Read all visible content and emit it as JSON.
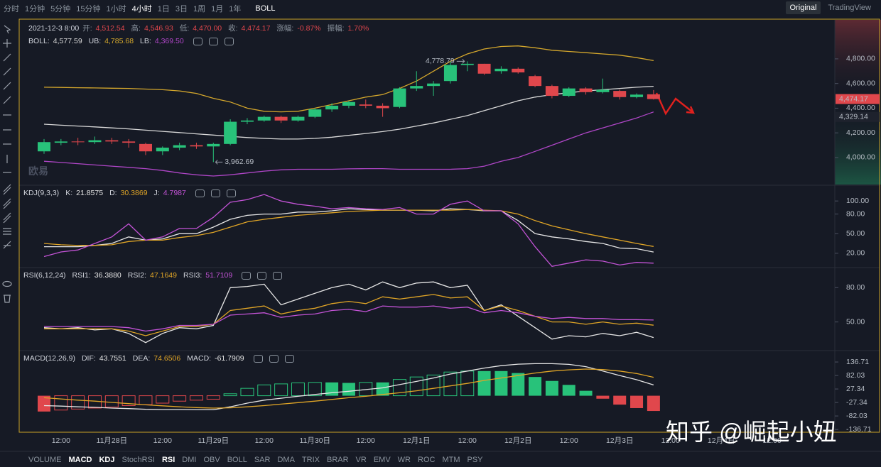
{
  "toolbar": {
    "timeframes": [
      "分时",
      "1分钟",
      "5分钟",
      "15分钟",
      "1小时",
      "4小时",
      "1日",
      "3日",
      "1周",
      "1月",
      "1年"
    ],
    "active_timeframe": 5,
    "indicator": "BOLL",
    "views": [
      "Original",
      "TradingView"
    ],
    "active_view": 0
  },
  "indicator_bar": {
    "items": [
      "VOLUME",
      "MACD",
      "KDJ",
      "StochRSI",
      "RSI",
      "DMI",
      "OBV",
      "BOLL",
      "SAR",
      "DMA",
      "TRIX",
      "BRAR",
      "VR",
      "EMV",
      "WR",
      "ROC",
      "MTM",
      "PSY"
    ],
    "active": [
      1,
      2,
      4
    ]
  },
  "logo": "欧易",
  "watermark": "知乎 @崛起小妞",
  "chart_data": [
    {
      "type": "candlestick",
      "info": {
        "time": "2021-12-3 8:00",
        "value_color": "#e0474c",
        "items": [
          {
            "label": "开:",
            "value": "4,512.54"
          },
          {
            "label": "高:",
            "value": "4,546.93"
          },
          {
            "label": "低:",
            "value": "4,470.00"
          },
          {
            "label": "收:",
            "value": "4,474.17"
          },
          {
            "label": "涨幅:",
            "value": "-0.87%"
          },
          {
            "label": "振幅:",
            "value": "1.70%"
          }
        ]
      },
      "categories": [
        null,
        "12:00",
        null,
        null,
        "11月28日",
        null,
        null,
        "12:00",
        null,
        null,
        "11月29日",
        null,
        null,
        "12:00",
        null,
        null,
        "11月30日",
        null,
        null,
        "12:00",
        null,
        null,
        "12月1日",
        null,
        null,
        "12:00",
        null,
        null,
        "12月2日",
        null,
        null,
        "12:00",
        null,
        null,
        "12月3日",
        null,
        null,
        "12:00",
        null,
        null,
        "12月4日",
        null,
        null,
        "12:00"
      ],
      "open": [
        4050,
        4120,
        4130,
        4125,
        4140,
        4130,
        4110,
        4050,
        4080,
        4100,
        4090,
        4110,
        4290,
        4300,
        4330,
        4300,
        4330,
        4390,
        4420,
        4430,
        4420,
        4410,
        4560,
        4580,
        4620,
        4750,
        4760,
        4700,
        4720,
        4660,
        4580,
        4500,
        4560,
        4530,
        4540,
        4490,
        4512.54,
        null,
        null,
        null,
        null,
        null,
        null,
        null
      ],
      "high": [
        4150,
        4150,
        4160,
        4170,
        4160,
        4150,
        4120,
        4090,
        4120,
        4120,
        4120,
        4310,
        4320,
        4340,
        4340,
        4340,
        4400,
        4440,
        4460,
        4470,
        4440,
        4570,
        4700,
        4620,
        4778.79,
        4780,
        4760,
        4740,
        4730,
        4670,
        4590,
        4570,
        4570,
        4640,
        4550,
        4520,
        4546.93,
        null,
        null,
        null,
        null,
        null,
        null,
        null
      ],
      "low": [
        4030,
        4100,
        4100,
        4110,
        4110,
        4080,
        4020,
        4020,
        4060,
        4070,
        3962.69,
        4100,
        4270,
        4290,
        4280,
        4290,
        4320,
        4370,
        4400,
        4400,
        4330,
        4400,
        4540,
        4500,
        4600,
        4700,
        4670,
        4680,
        4680,
        4570,
        4480,
        4490,
        4510,
        4520,
        4470,
        4480,
        4470,
        null,
        null,
        null,
        null,
        null,
        null,
        null
      ],
      "close": [
        4125,
        4130,
        4125,
        4140,
        4130,
        4120,
        4050,
        4080,
        4100,
        4090,
        4110,
        4290,
        4300,
        4330,
        4300,
        4330,
        4390,
        4420,
        4450,
        4420,
        4400,
        4560,
        4580,
        4600,
        4750,
        4760,
        4680,
        4720,
        4690,
        4580,
        4500,
        4560,
        4530,
        4550,
        4490,
        4510,
        4474.17,
        null,
        null,
        null,
        null,
        null,
        null,
        null
      ],
      "up_color": "#28c27a",
      "down_color": "#e0474c",
      "high_label": "4,778.79",
      "low_label": "3,962.69",
      "series": [
        {
          "name": "BOLL:",
          "color": "#d9d9d9",
          "last_label": "4,577.59",
          "values": [
            4270,
            4262,
            4255,
            4248,
            4240,
            4232,
            4222,
            4212,
            4202,
            4192,
            4182,
            4172,
            4162,
            4155,
            4150,
            4150,
            4155,
            4165,
            4180,
            4195,
            4210,
            4230,
            4255,
            4280,
            4310,
            4340,
            4380,
            4420,
            4460,
            4490,
            4510,
            4525,
            4540,
            4550,
            4560,
            4570,
            4577.59,
            null,
            null,
            null,
            null,
            null,
            null,
            null
          ]
        },
        {
          "name": "UB:",
          "color": "#d4a72c",
          "last_label": "4,785.68",
          "values": [
            4570,
            4568,
            4566,
            4564,
            4562,
            4560,
            4555,
            4550,
            4540,
            4520,
            4480,
            4450,
            4400,
            4375,
            4370,
            4375,
            4400,
            4430,
            4460,
            4490,
            4510,
            4560,
            4620,
            4700,
            4780,
            4840,
            4880,
            4900,
            4905,
            4890,
            4870,
            4860,
            4850,
            4840,
            4830,
            4810,
            4785.68,
            null,
            null,
            null,
            null,
            null,
            null,
            null
          ]
        },
        {
          "name": "LB:",
          "color": "#b046c8",
          "last_label": "4,369.50",
          "values": [
            3970,
            3960,
            3950,
            3940,
            3930,
            3920,
            3910,
            3895,
            3875,
            3860,
            3850,
            3860,
            3875,
            3890,
            3900,
            3905,
            3905,
            3905,
            3908,
            3910,
            3910,
            3905,
            3905,
            3905,
            3905,
            3910,
            3930,
            3970,
            4000,
            4050,
            4100,
            4150,
            4200,
            4240,
            4280,
            4320,
            4369.5,
            null,
            null,
            null,
            null,
            null,
            null,
            null
          ]
        }
      ],
      "price_tags": [
        {
          "value": 4474.17,
          "label": "4,474.17",
          "color": "#e0474c"
        },
        {
          "value": 4329.14,
          "label": "4,329.14",
          "color": "#1e222d"
        }
      ],
      "ylim": [
        3781,
        5116
      ],
      "yticks": [
        {
          "value": 4000,
          "label": "4,000.00"
        },
        {
          "value": 4200,
          "label": "4,200.00"
        },
        {
          "value": 4400,
          "label": "4,400.00"
        },
        {
          "value": 4600,
          "label": "4,600.00"
        },
        {
          "value": 4800,
          "label": "4,800.00"
        }
      ],
      "grid": false
    },
    {
      "type": "line",
      "title": "KDJ(9,3,3)",
      "series": [
        {
          "name": "K:",
          "color": "#e6e6e6",
          "last_label": "21.8575",
          "values": [
            30,
            30,
            30,
            32,
            35,
            45,
            40,
            42,
            50,
            50,
            60,
            72,
            78,
            80,
            80,
            83,
            83,
            85,
            88,
            87,
            86,
            86,
            86,
            85,
            88,
            87,
            85,
            85,
            70,
            50,
            45,
            42,
            38,
            35,
            28,
            27,
            21.8575,
            null,
            null,
            null,
            null,
            null,
            null,
            null
          ]
        },
        {
          "name": "D:",
          "color": "#e0a526",
          "last_label": "30.3869",
          "values": [
            35,
            33,
            32,
            32,
            33,
            38,
            40,
            40,
            44,
            47,
            52,
            60,
            68,
            72,
            75,
            78,
            80,
            82,
            84,
            85,
            86,
            86,
            86,
            86,
            86,
            87,
            86,
            85,
            80,
            70,
            62,
            56,
            50,
            45,
            40,
            35,
            30.3869,
            null,
            null,
            null,
            null,
            null,
            null,
            null
          ]
        },
        {
          "name": "J:",
          "color": "#c353d6",
          "last_label": "4.7987",
          "values": [
            15,
            22,
            25,
            35,
            45,
            65,
            40,
            45,
            58,
            58,
            75,
            98,
            102,
            110,
            100,
            95,
            92,
            88,
            90,
            88,
            87,
            90,
            80,
            80,
            95,
            100,
            85,
            85,
            65,
            30,
            0,
            5,
            10,
            8,
            2,
            6,
            4.7987,
            null,
            null,
            null,
            null,
            null,
            null,
            null
          ]
        }
      ],
      "ylim": [
        -0.8,
        123
      ],
      "yticks": [
        {
          "value": 100,
          "label": "100.00"
        },
        {
          "value": 80,
          "label": "80.00"
        },
        {
          "value": 50,
          "label": "50.00"
        },
        {
          "value": 20,
          "label": "20.00"
        }
      ],
      "grid": false
    },
    {
      "type": "line",
      "title": "RSI(6,12,24)",
      "series": [
        {
          "name": "RSI1:",
          "color": "#e6e6e6",
          "last_label": "36.3880",
          "values": [
            45,
            44,
            45,
            43,
            44,
            40,
            32,
            40,
            45,
            44,
            47,
            80,
            81,
            83,
            65,
            70,
            75,
            80,
            83,
            78,
            85,
            80,
            84,
            85,
            80,
            82,
            60,
            65,
            55,
            45,
            35,
            38,
            37,
            40,
            38,
            41,
            36.388,
            null,
            null,
            null,
            null,
            null,
            null,
            null
          ]
        },
        {
          "name": "RSI2:",
          "color": "#e0a526",
          "last_label": "47.1649",
          "values": [
            44,
            44,
            44,
            44,
            44,
            42,
            38,
            42,
            46,
            46,
            48,
            60,
            62,
            64,
            57,
            60,
            62,
            66,
            68,
            66,
            72,
            70,
            72,
            74,
            71,
            72,
            60,
            64,
            60,
            55,
            50,
            50,
            48,
            50,
            48,
            49,
            47.1649,
            null,
            null,
            null,
            null,
            null,
            null,
            null
          ]
        },
        {
          "name": "RSI3:",
          "color": "#c353d6",
          "last_label": "51.7109",
          "values": [
            46,
            46,
            46,
            46,
            46,
            45,
            42,
            44,
            47,
            47,
            48,
            56,
            57,
            58,
            54,
            56,
            57,
            60,
            61,
            59,
            64,
            63,
            63,
            64,
            62,
            63,
            58,
            60,
            58,
            55,
            53,
            54,
            53,
            53,
            52,
            52,
            51.7109,
            null,
            null,
            null,
            null,
            null,
            null,
            null
          ]
        }
      ],
      "ylim": [
        25.6,
        96.9
      ],
      "yticks": [
        {
          "value": 80,
          "label": "80.00"
        },
        {
          "value": 50,
          "label": "50.00"
        }
      ],
      "grid": false
    },
    {
      "type": "combo",
      "title": "MACD(12,26,9)",
      "series": [
        {
          "name": "DIF:",
          "kind": "line",
          "color": "#e6e6e6",
          "last_label": "43.7551",
          "values": [
            -40,
            -42,
            -45,
            -47,
            -50,
            -52,
            -55,
            -56,
            -56,
            -57,
            -57,
            -45,
            -30,
            -18,
            -10,
            -2,
            5,
            12,
            18,
            25,
            32,
            45,
            58,
            72,
            88,
            100,
            112,
            122,
            128,
            130,
            130,
            127,
            118,
            100,
            82,
            65,
            43.7551,
            null,
            null,
            null,
            null,
            null,
            null,
            null
          ]
        },
        {
          "name": "DEA:",
          "kind": "line",
          "color": "#e0a526",
          "last_label": "74.6506",
          "values": [
            -8,
            -13,
            -18,
            -22,
            -27,
            -32,
            -37,
            -41,
            -45,
            -48,
            -50,
            -49,
            -45,
            -40,
            -34,
            -28,
            -22,
            -15,
            -8,
            -2,
            5,
            12,
            20,
            30,
            40,
            50,
            62,
            72,
            82,
            92,
            100,
            105,
            108,
            106,
            100,
            90,
            74.6506,
            null,
            null,
            null,
            null,
            null,
            null,
            null
          ]
        },
        {
          "name": "MACD:",
          "kind": "bar",
          "color": "#e6e6e6",
          "up_color": "#28c27a",
          "down_color": "#e0474c",
          "last_label": "-61.7909",
          "values": [
            -64,
            -58,
            -54,
            -50,
            -46,
            -40,
            -36,
            -30,
            -22,
            -18,
            -14,
            8,
            30,
            44,
            48,
            52,
            54,
            54,
            52,
            54,
            54,
            66,
            76,
            84,
            96,
            100,
            100,
            100,
            92,
            76,
            60,
            44,
            20,
            -12,
            -36,
            -50,
            -61.7909,
            null,
            null,
            null,
            null,
            null,
            null,
            null
          ]
        }
      ],
      "ylim": [
        -145,
        180
      ],
      "yticks": [
        136.71,
        82.03,
        27.34,
        -27.34,
        -82.03,
        -136.71
      ],
      "grid": false
    }
  ]
}
